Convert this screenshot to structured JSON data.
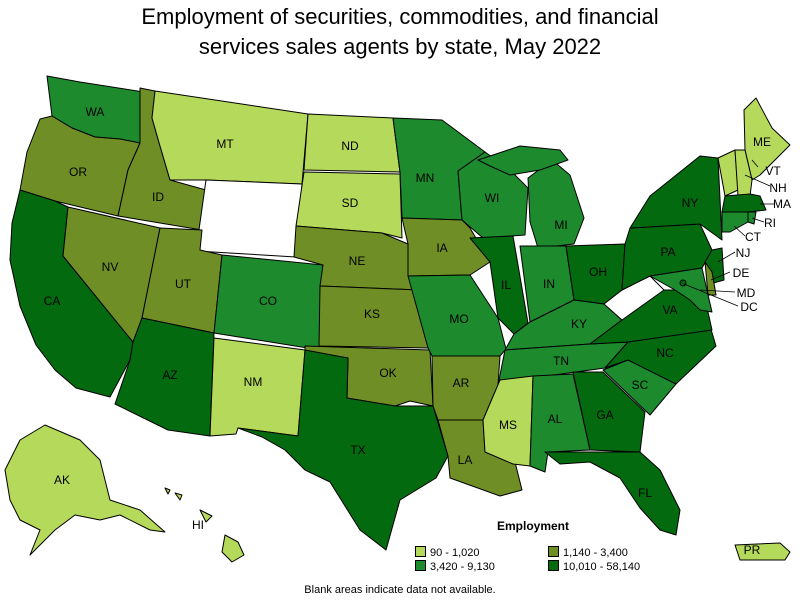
{
  "title": {
    "line1": "Employment of securities, commodities, and financial",
    "line2": "services sales agents by state, May 2022"
  },
  "legend": {
    "title": "Employment",
    "bins": [
      {
        "label": "90 - 1,020",
        "color": "#b5d95a"
      },
      {
        "label": "1,140 - 3,400",
        "color": "#6f8f26"
      },
      {
        "label": "3,420 - 9,130",
        "color": "#1e8a2e"
      },
      {
        "label": "10,010 - 58,140",
        "color": "#046a10"
      }
    ]
  },
  "footnote": "Blank areas indicate data not available.",
  "states": {
    "WA": {
      "label": "WA",
      "bin": 2
    },
    "OR": {
      "label": "OR",
      "bin": 1
    },
    "CA": {
      "label": "CA",
      "bin": 3
    },
    "ID": {
      "label": "ID",
      "bin": 1
    },
    "NV": {
      "label": "NV",
      "bin": 1
    },
    "MT": {
      "label": "MT",
      "bin": 0
    },
    "WY": {
      "label": "",
      "bin": null
    },
    "UT": {
      "label": "UT",
      "bin": 1
    },
    "AZ": {
      "label": "AZ",
      "bin": 3
    },
    "CO": {
      "label": "CO",
      "bin": 2
    },
    "NM": {
      "label": "NM",
      "bin": 0
    },
    "ND": {
      "label": "ND",
      "bin": 0
    },
    "SD": {
      "label": "SD",
      "bin": 0
    },
    "NE": {
      "label": "NE",
      "bin": 1
    },
    "KS": {
      "label": "KS",
      "bin": 1
    },
    "OK": {
      "label": "OK",
      "bin": 1
    },
    "TX": {
      "label": "TX",
      "bin": 3
    },
    "MN": {
      "label": "MN",
      "bin": 2
    },
    "IA": {
      "label": "IA",
      "bin": 1
    },
    "MO": {
      "label": "MO",
      "bin": 2
    },
    "AR": {
      "label": "AR",
      "bin": 1
    },
    "LA": {
      "label": "LA",
      "bin": 1
    },
    "WI": {
      "label": "WI",
      "bin": 2
    },
    "IL": {
      "label": "IL",
      "bin": 3
    },
    "MI": {
      "label": "MI",
      "bin": 2
    },
    "IN": {
      "label": "IN",
      "bin": 2
    },
    "OH": {
      "label": "OH",
      "bin": 3
    },
    "KY": {
      "label": "KY",
      "bin": 2
    },
    "TN": {
      "label": "TN",
      "bin": 2
    },
    "MS": {
      "label": "MS",
      "bin": 0
    },
    "AL": {
      "label": "AL",
      "bin": 2
    },
    "GA": {
      "label": "GA",
      "bin": 3
    },
    "FL": {
      "label": "FL",
      "bin": 3
    },
    "SC": {
      "label": "SC",
      "bin": 2
    },
    "NC": {
      "label": "NC",
      "bin": 3
    },
    "VA": {
      "label": "VA",
      "bin": 3
    },
    "WV": {
      "label": "",
      "bin": null
    },
    "PA": {
      "label": "PA",
      "bin": 3
    },
    "NY": {
      "label": "NY",
      "bin": 3
    },
    "ME": {
      "label": "ME",
      "bin": 0
    },
    "VT": {
      "label": "VT",
      "bin": 0
    },
    "NH": {
      "label": "NH",
      "bin": 0
    },
    "MA": {
      "label": "MA",
      "bin": 3
    },
    "RI": {
      "label": "RI",
      "bin": 2
    },
    "CT": {
      "label": "CT",
      "bin": 2
    },
    "NJ": {
      "label": "NJ",
      "bin": 3
    },
    "DE": {
      "label": "DE",
      "bin": 1
    },
    "MD": {
      "label": "MD",
      "bin": 2
    },
    "DC": {
      "label": "DC",
      "bin": 3
    },
    "AK": {
      "label": "AK",
      "bin": 0
    },
    "HI": {
      "label": "HI",
      "bin": 0
    },
    "PR": {
      "label": "PR",
      "bin": 0
    }
  }
}
